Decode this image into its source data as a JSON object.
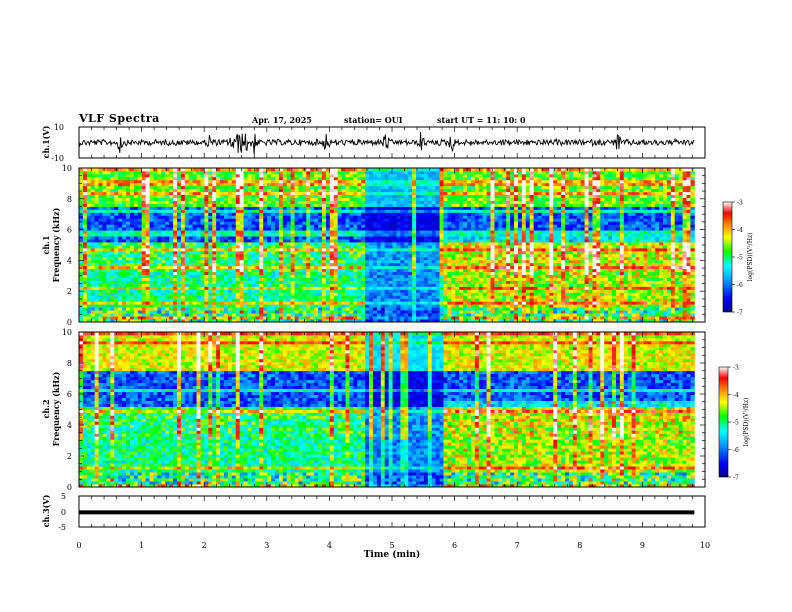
{
  "header": {
    "title": "VLF Spectra",
    "date": "Apr. 17, 2025",
    "station": "station= OUI",
    "start": "start  UT  =   11: 10: 0"
  },
  "chart_data": [
    {
      "type": "line",
      "panel": "ch1-waveform",
      "ylabel": "ch.1(V)",
      "ylim": [
        -10,
        10
      ],
      "yticks": [
        "10",
        "-10"
      ],
      "xlim": [
        0,
        10
      ],
      "data_end_min": 9.83,
      "baseline": 0,
      "bursts_min": [
        0.65,
        2.1,
        2.45,
        2.55,
        2.62,
        2.7,
        2.8,
        3.95,
        4.9,
        5.47,
        5.95,
        8.6
      ]
    },
    {
      "type": "heatmap",
      "panel": "ch1-spectrogram",
      "ylabel": "ch.1\nFrequency (kHz)",
      "ylim": [
        0,
        10
      ],
      "yticks": [
        "0",
        "2",
        "4",
        "6",
        "8",
        "10"
      ],
      "xlim": [
        0,
        10
      ],
      "data_end_min": 9.83,
      "colorbar": {
        "label": "log(PSD)(V²/Hz)",
        "range": [
          -7,
          -3
        ],
        "ticks": [
          "-3",
          "-4",
          "-5",
          "-6",
          "-7"
        ]
      },
      "dark_gap_min": [
        4.6,
        5.85
      ]
    },
    {
      "type": "heatmap",
      "panel": "ch2-spectrogram",
      "ylabel": "ch.2\nFrequency (kHz)",
      "ylim": [
        0,
        10
      ],
      "yticks": [
        "0",
        "2",
        "4",
        "6",
        "8",
        "10"
      ],
      "xlim": [
        0,
        10
      ],
      "data_end_min": 9.83,
      "colorbar": {
        "label": "log(PSD)(V²/Hz)",
        "range": [
          -7,
          -3
        ],
        "ticks": [
          "-3",
          "-4",
          "-5",
          "-6",
          "-7"
        ]
      },
      "dark_gap_min": [
        4.6,
        5.85
      ]
    },
    {
      "type": "line",
      "panel": "ch3-waveform",
      "ylabel": "ch.3(V)",
      "ylim": [
        -5,
        5
      ],
      "yticks": [
        "5",
        "0",
        "-5"
      ],
      "xlim": [
        0,
        10
      ],
      "data_end_min": 9.83,
      "baseline": -0.3,
      "xlabel": "Time (min)",
      "xticks": [
        "0",
        "1",
        "2",
        "3",
        "4",
        "5",
        "6",
        "7",
        "8",
        "9",
        "10"
      ]
    }
  ],
  "colors": {
    "scale": [
      "#00008f",
      "#0000ff",
      "#00a0ff",
      "#00ffff",
      "#00ff00",
      "#ffff00",
      "#ff8000",
      "#ff0000",
      "#ffffff"
    ]
  }
}
